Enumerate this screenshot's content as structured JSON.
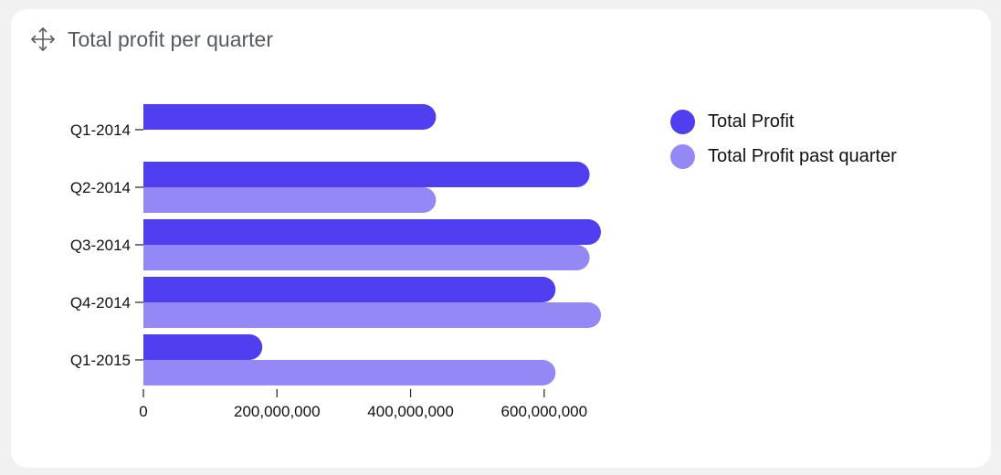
{
  "widget": {
    "title": "Total profit per quarter",
    "icon": "move-icon"
  },
  "chart_data": {
    "type": "bar",
    "orientation": "horizontal",
    "title": "Total profit per quarter",
    "categories": [
      "Q1-2014",
      "Q2-2014",
      "Q3-2014",
      "Q4-2014",
      "Q1-2015"
    ],
    "series": [
      {
        "name": "Total Profit",
        "color": "#4f3ff0",
        "values": [
          438000000,
          668000000,
          685000000,
          617000000,
          178000000
        ]
      },
      {
        "name": "Total Profit past quarter",
        "color": "#9488f6",
        "values": [
          null,
          438000000,
          668000000,
          685000000,
          617000000
        ]
      }
    ],
    "xticks": [
      0,
      200000000,
      400000000,
      600000000
    ],
    "xtick_labels": [
      "0",
      "200,000,000",
      "400,000,000",
      "600,000,000"
    ],
    "xlim": [
      0,
      685000000
    ],
    "grid": false,
    "legend_position": "right"
  }
}
